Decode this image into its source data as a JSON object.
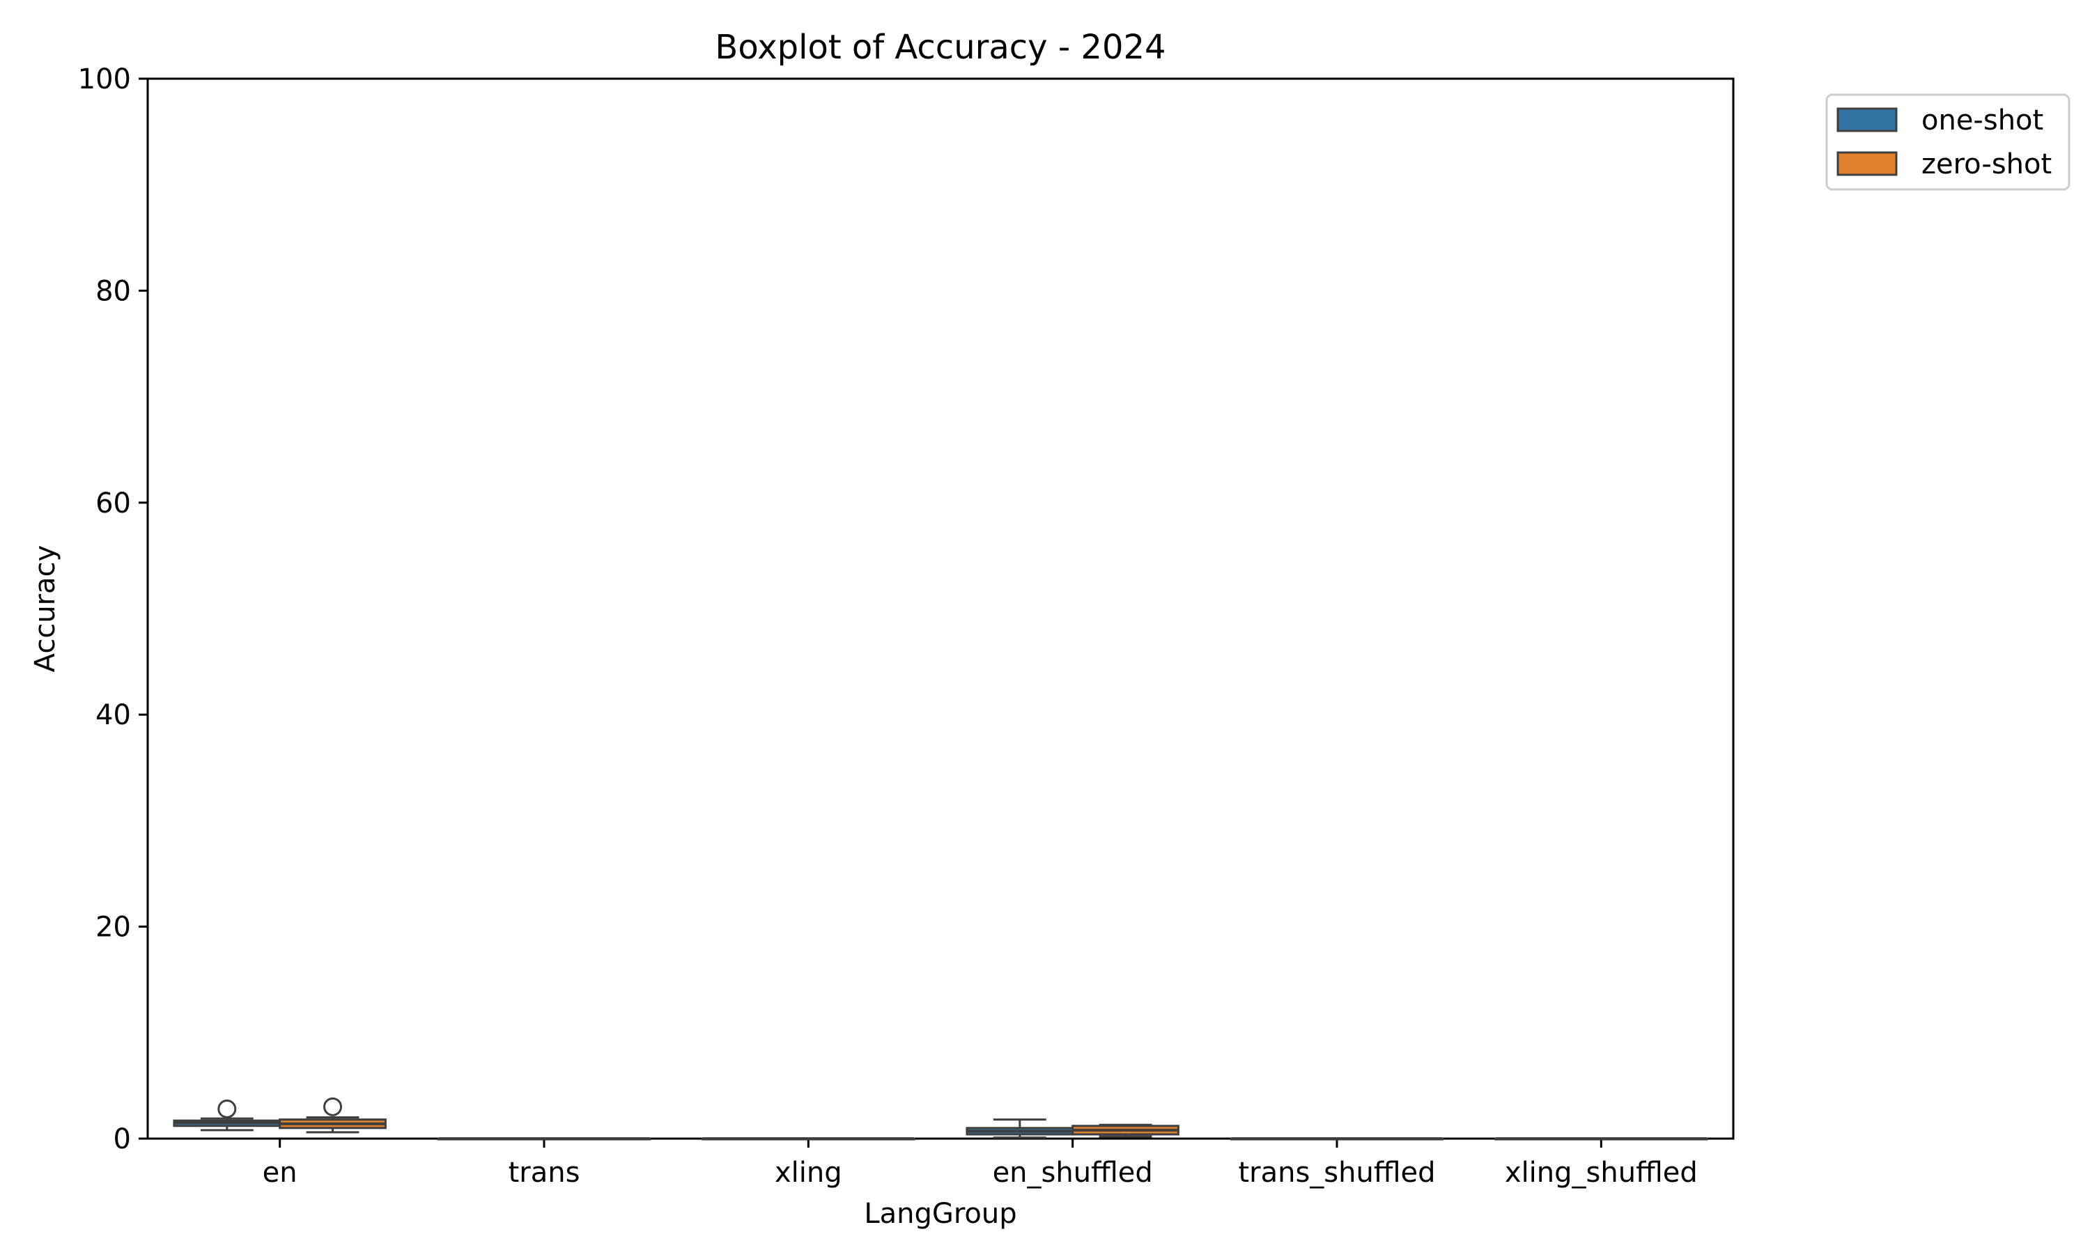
{
  "chart_data": {
    "type": "box",
    "title": "Boxplot of Accuracy - 2024",
    "xlabel": "LangGroup",
    "ylabel": "Accuracy",
    "ylim": [
      0,
      100
    ],
    "yticks": [
      0,
      20,
      40,
      60,
      80,
      100
    ],
    "categories": [
      "en",
      "trans",
      "xling",
      "en_shuffled",
      "trans_shuffled",
      "xling_shuffled"
    ],
    "legend_position": "outside-top-right",
    "grid": false,
    "series": [
      {
        "name": "one-shot",
        "color": "#3274a1",
        "boxes": [
          {
            "whisker_low": 0.8,
            "q1": 1.2,
            "median": 1.5,
            "q3": 1.7,
            "whisker_high": 1.9,
            "outliers": [
              2.8
            ]
          },
          {
            "whisker_low": 0,
            "q1": 0,
            "median": 0,
            "q3": 0,
            "whisker_high": 0,
            "outliers": []
          },
          {
            "whisker_low": 0,
            "q1": 0,
            "median": 0,
            "q3": 0,
            "whisker_high": 0,
            "outliers": []
          },
          {
            "whisker_low": 0.1,
            "q1": 0.4,
            "median": 0.7,
            "q3": 1.0,
            "whisker_high": 1.8,
            "outliers": []
          },
          {
            "whisker_low": 0,
            "q1": 0,
            "median": 0,
            "q3": 0,
            "whisker_high": 0,
            "outliers": []
          },
          {
            "whisker_low": 0,
            "q1": 0,
            "median": 0,
            "q3": 0,
            "whisker_high": 0,
            "outliers": []
          }
        ]
      },
      {
        "name": "zero-shot",
        "color": "#e1812c",
        "boxes": [
          {
            "whisker_low": 0.6,
            "q1": 1.0,
            "median": 1.4,
            "q3": 1.8,
            "whisker_high": 2.0,
            "outliers": [
              3.0
            ]
          },
          {
            "whisker_low": 0,
            "q1": 0,
            "median": 0,
            "q3": 0,
            "whisker_high": 0,
            "outliers": []
          },
          {
            "whisker_low": 0,
            "q1": 0,
            "median": 0,
            "q3": 0,
            "whisker_high": 0,
            "outliers": []
          },
          {
            "whisker_low": 0.2,
            "q1": 0.4,
            "median": 0.8,
            "q3": 1.2,
            "whisker_high": 1.3,
            "outliers": []
          },
          {
            "whisker_low": 0,
            "q1": 0,
            "median": 0,
            "q3": 0,
            "whisker_high": 0,
            "outliers": []
          },
          {
            "whisker_low": 0,
            "q1": 0,
            "median": 0,
            "q3": 0,
            "whisker_high": 0,
            "outliers": []
          }
        ]
      }
    ]
  }
}
